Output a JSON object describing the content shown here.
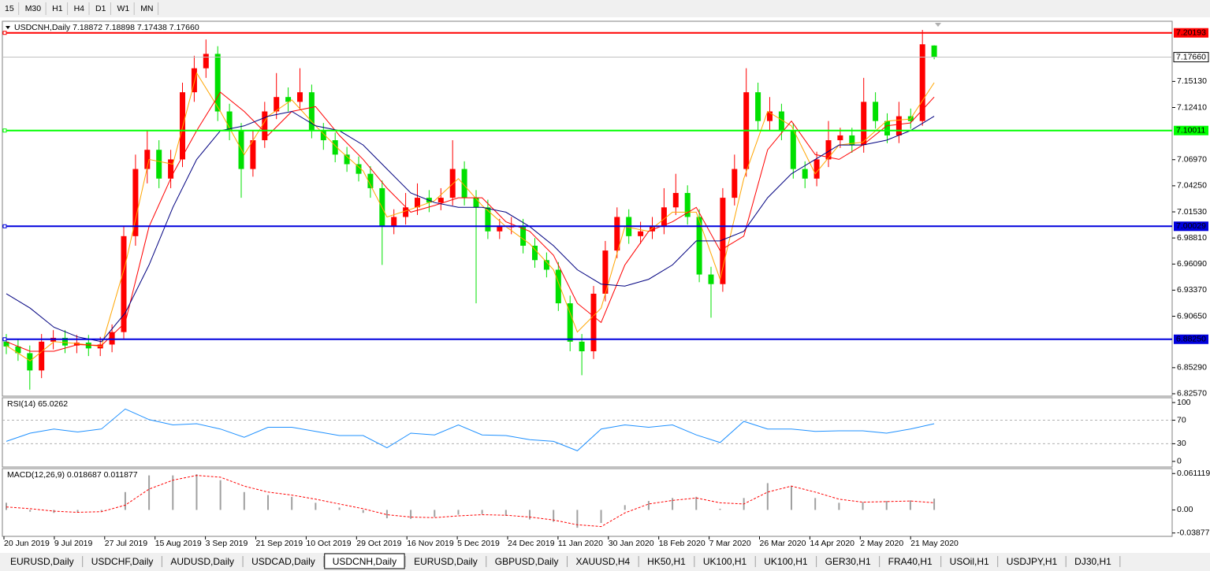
{
  "toolbar": {
    "timeframes": [
      "15",
      "M30",
      "H1",
      "H4",
      "D1",
      "W1",
      "MN"
    ]
  },
  "tabs": [
    "EURUSD,Daily",
    "USDCHF,Daily",
    "AUDUSD,Daily",
    "USDCAD,Daily",
    "USDCNH,Daily",
    "EURUSD,Daily",
    "GBPUSD,Daily",
    "XAUUSD,H4",
    "HK50,H1",
    "UK100,H1",
    "UK100,H1",
    "GER30,H1",
    "FRA40,H1",
    "USOil,H1",
    "USDJPY,H1",
    "DJ30,H1"
  ],
  "active_tab": 4,
  "chart_data": [
    {
      "type": "candlestick",
      "title": "USDCNH,Daily  7.18872 7.18898 7.17438 7.17660",
      "up_color": "#ff0000",
      "down_color": "#00e000",
      "open": [
        6.88,
        6.875,
        6.868,
        6.85,
        6.88,
        6.884,
        6.876,
        6.879,
        6.873,
        6.877,
        6.89,
        6.99,
        7.06,
        7.08,
        7.05,
        7.07,
        7.14,
        7.165,
        7.18,
        7.12,
        7.1,
        7.06,
        7.09,
        7.12,
        7.135,
        7.13,
        7.14,
        7.1,
        7.09,
        7.075,
        7.065,
        7.055,
        7.04,
        7.0,
        7.01,
        7.02,
        7.03,
        7.025,
        7.03,
        7.06,
        7.03,
        7.02,
        6.995,
        7.0,
        7.0,
        6.98,
        6.965,
        6.955,
        6.92,
        6.88,
        6.87,
        6.93,
        6.975,
        7.01,
        6.99,
        6.995,
        7.0,
        7.02,
        7.035,
        7.01,
        6.95,
        6.94,
        7.03,
        7.06,
        7.14,
        7.11,
        7.12,
        7.1,
        7.06,
        7.05,
        7.07,
        7.09,
        7.095,
        7.085,
        7.13,
        7.11,
        7.095,
        7.115,
        7.11,
        7.18872
      ],
      "high": [
        6.888,
        6.883,
        6.876,
        6.888,
        6.892,
        6.892,
        6.887,
        6.887,
        6.885,
        6.898,
        7.0,
        7.075,
        7.1,
        7.09,
        7.08,
        7.15,
        7.178,
        7.195,
        7.188,
        7.128,
        7.108,
        7.1,
        7.13,
        7.16,
        7.145,
        7.165,
        7.148,
        7.108,
        7.098,
        7.083,
        7.073,
        7.063,
        7.048,
        7.018,
        7.035,
        7.045,
        7.038,
        7.04,
        7.09,
        7.068,
        7.038,
        7.028,
        7.008,
        7.01,
        7.008,
        6.988,
        6.973,
        6.963,
        6.928,
        6.888,
        6.938,
        6.985,
        7.02,
        7.018,
        7.005,
        7.01,
        7.04,
        7.055,
        7.043,
        7.018,
        6.958,
        7.04,
        7.075,
        7.165,
        7.15,
        7.135,
        7.128,
        7.108,
        7.068,
        7.078,
        7.11,
        7.103,
        7.103,
        7.155,
        7.14,
        7.118,
        7.13,
        7.123,
        7.205,
        7.18898
      ],
      "low": [
        6.867,
        6.86,
        6.83,
        6.842,
        6.872,
        6.868,
        6.868,
        6.865,
        6.865,
        6.869,
        6.882,
        6.98,
        7.045,
        7.04,
        7.04,
        7.062,
        7.13,
        7.155,
        7.11,
        7.09,
        7.03,
        7.052,
        7.082,
        7.112,
        7.12,
        7.122,
        7.092,
        7.08,
        7.067,
        7.057,
        7.047,
        7.03,
        6.96,
        6.992,
        7.002,
        7.012,
        7.015,
        7.017,
        7.022,
        7.022,
        6.92,
        6.987,
        6.987,
        6.992,
        6.972,
        6.957,
        6.947,
        6.912,
        6.87,
        6.845,
        6.862,
        6.922,
        6.967,
        6.982,
        6.982,
        6.987,
        6.992,
        7.012,
        7.002,
        6.942,
        6.905,
        6.932,
        7.022,
        7.052,
        7.1,
        7.1,
        7.09,
        7.05,
        7.04,
        7.042,
        7.062,
        7.082,
        7.077,
        7.077,
        7.102,
        7.087,
        7.087,
        7.102,
        7.105,
        7.17438
      ],
      "close": [
        6.875,
        6.868,
        6.85,
        6.88,
        6.884,
        6.876,
        6.879,
        6.873,
        6.877,
        6.89,
        6.99,
        7.06,
        7.08,
        7.05,
        7.07,
        7.14,
        7.165,
        7.18,
        7.12,
        7.1,
        7.06,
        7.09,
        7.12,
        7.135,
        7.13,
        7.14,
        7.1,
        7.09,
        7.075,
        7.065,
        7.055,
        7.04,
        7.0,
        7.01,
        7.02,
        7.03,
        7.025,
        7.03,
        7.06,
        7.03,
        7.02,
        6.995,
        7.0,
        7.0,
        6.98,
        6.965,
        6.955,
        6.92,
        6.88,
        6.87,
        6.93,
        6.975,
        7.01,
        6.99,
        6.995,
        7.0,
        7.02,
        7.035,
        7.01,
        6.95,
        6.94,
        7.03,
        7.06,
        7.14,
        7.11,
        7.12,
        7.1,
        7.06,
        7.05,
        7.07,
        7.09,
        7.095,
        7.085,
        7.13,
        7.11,
        7.095,
        7.115,
        7.11,
        7.19,
        7.1766
      ],
      "lines": [
        {
          "color": "#ffa500",
          "values": [
            6.876,
            6.86,
            6.88,
            6.878,
            6.875,
            6.96,
            7.07,
            7.065,
            7.16,
            7.12,
            7.075,
            7.115,
            7.132,
            7.105,
            7.08,
            7.058,
            7.01,
            7.018,
            7.027,
            7.05,
            7.022,
            7.0,
            6.982,
            6.955,
            6.89,
            6.915,
            7.0,
            6.995,
            7.015,
            7.015,
            6.945,
            7.05,
            7.12,
            7.105,
            7.055,
            7.085,
            7.088,
            7.11,
            7.112,
            7.15
          ]
        },
        {
          "color": "#ff0000",
          "values": [
            6.88,
            6.87,
            6.87,
            6.877,
            6.876,
            6.9,
            7.0,
            7.055,
            7.1,
            7.14,
            7.12,
            7.095,
            7.12,
            7.125,
            7.095,
            7.07,
            7.04,
            7.015,
            7.022,
            7.03,
            7.03,
            7.005,
            6.995,
            6.97,
            6.92,
            6.9,
            6.96,
            6.995,
            7.005,
            7.02,
            6.975,
            6.99,
            7.08,
            7.11,
            7.075,
            7.07,
            7.085,
            7.105,
            7.108,
            7.135
          ]
        },
        {
          "color": "#000080",
          "values": [
            6.93,
            6.915,
            6.895,
            6.885,
            6.88,
            6.91,
            6.96,
            7.02,
            7.07,
            7.1,
            7.105,
            7.115,
            7.12,
            7.105,
            7.1,
            7.085,
            7.06,
            7.035,
            7.025,
            7.02,
            7.02,
            7.015,
            7.0,
            6.98,
            6.955,
            6.94,
            6.938,
            6.945,
            6.96,
            6.985,
            6.985,
            6.995,
            7.03,
            7.055,
            7.07,
            7.085,
            7.085,
            7.09,
            7.1,
            7.115
          ]
        }
      ],
      "levels": [
        {
          "value": 7.20193,
          "label": "7.20193",
          "color": "#ff0000",
          "label_color": "#ffffff"
        },
        {
          "value": 7.10011,
          "label": "7.10011",
          "color": "#00ff00",
          "label_color": "#000000"
        },
        {
          "value": 7.00029,
          "label": "7.00029",
          "color": "#0000dd",
          "label_color": "#ffffff"
        },
        {
          "value": 6.8825,
          "label": "6.88250",
          "color": "#0000dd",
          "label_color": "#ffffff"
        }
      ],
      "current_price": {
        "value": 7.1766,
        "label": "7.17660"
      },
      "ylim": [
        6.8232,
        7.214
      ],
      "yticks": [
        {
          "value": 7.1513,
          "label": "7.15130"
        },
        {
          "value": 7.1241,
          "label": "7.12410"
        },
        {
          "value": 7.0697,
          "label": "7.06970"
        },
        {
          "value": 7.0425,
          "label": "7.04250"
        },
        {
          "value": 7.0153,
          "label": "7.01530"
        },
        {
          "value": 6.9881,
          "label": "6.98810"
        },
        {
          "value": 6.9609,
          "label": "6.96090"
        },
        {
          "value": 6.9337,
          "label": "6.93370"
        },
        {
          "value": 6.9065,
          "label": "6.90650"
        },
        {
          "value": 6.8529,
          "label": "6.85290"
        },
        {
          "value": 6.8257,
          "label": "6.82570"
        }
      ],
      "date_labels": [
        "20 Jun 2019",
        "9 Jul 2019",
        "27 Jul 2019",
        "15 Aug 2019",
        "3 Sep 2019",
        "21 Sep 2019",
        "10 Oct 2019",
        "29 Oct 2019",
        "16 Nov 2019",
        "5 Dec 2019",
        "24 Dec 2019",
        "11 Jan 2020",
        "30 Jan 2020",
        "18 Feb 2020",
        "7 Mar 2020",
        "26 Mar 2020",
        "14 Apr 2020",
        "2 May 2020",
        "21 May 2020"
      ]
    },
    {
      "type": "line",
      "title": "RSI(14) 65.0262",
      "color": "#1e90ff",
      "values": [
        34,
        48,
        55,
        50,
        55,
        89,
        71,
        62,
        64,
        55,
        41,
        58,
        58,
        51,
        44,
        44,
        23,
        48,
        45,
        62,
        45,
        44,
        37,
        34,
        18,
        55,
        62,
        58,
        62,
        45,
        32,
        68,
        55,
        55,
        51,
        52,
        52,
        48,
        55,
        64
      ],
      "levels": [
        70,
        30
      ],
      "ylim": [
        -9.6,
        108.2
      ],
      "yticks": [
        100,
        70,
        30,
        0
      ]
    },
    {
      "type": "macd",
      "title": "MACD(12,26,9) 0.018687 0.011877",
      "color": "#a0a0a0",
      "signal_color": "#ff0000",
      "values": [
        0.012,
        -0.003,
        -0.005,
        -0.004,
        -0.002,
        0.03,
        0.058,
        0.058,
        0.06,
        0.05,
        0.03,
        0.025,
        0.022,
        0.012,
        0.004,
        -0.005,
        -0.014,
        -0.015,
        -0.012,
        -0.008,
        -0.007,
        -0.01,
        -0.016,
        -0.02,
        -0.03,
        -0.022,
        0.008,
        0.015,
        0.02,
        0.022,
        0.002,
        0.02,
        0.045,
        0.04,
        0.02,
        0.012,
        0.013,
        0.015,
        0.016,
        0.019
      ],
      "signal": [
        0.005,
        0.002,
        -0.002,
        -0.004,
        -0.003,
        0.008,
        0.035,
        0.05,
        0.058,
        0.055,
        0.04,
        0.03,
        0.025,
        0.018,
        0.01,
        0.002,
        -0.008,
        -0.012,
        -0.013,
        -0.01,
        -0.008,
        -0.009,
        -0.012,
        -0.017,
        -0.025,
        -0.028,
        -0.005,
        0.01,
        0.016,
        0.02,
        0.012,
        0.01,
        0.03,
        0.04,
        0.03,
        0.018,
        0.013,
        0.014,
        0.015,
        0.012
      ],
      "ylim": [
        -0.0444,
        0.0694
      ],
      "yticks": [
        0.061119,
        {
          "value": 0,
          "label": "0.00"
        },
        -0.038777
      ]
    }
  ]
}
